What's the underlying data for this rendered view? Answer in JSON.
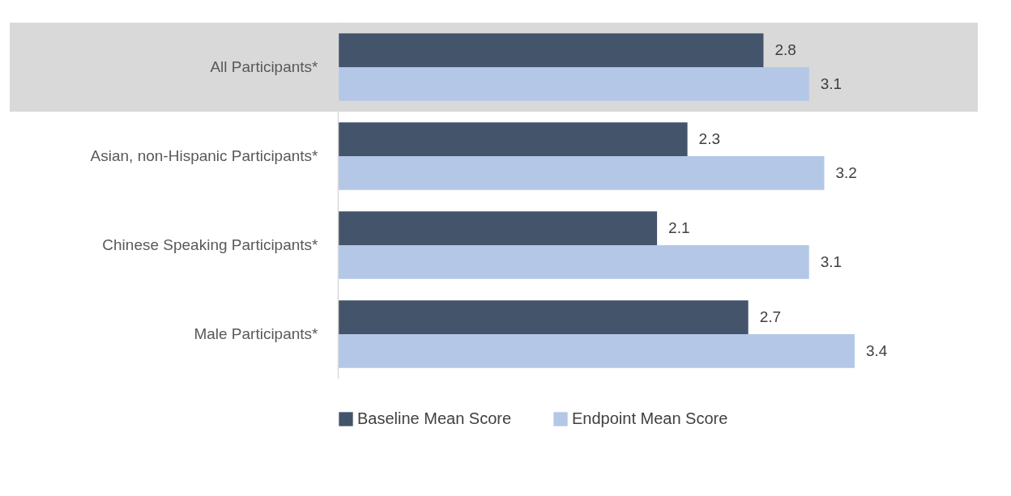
{
  "chart_data": {
    "type": "bar",
    "orientation": "horizontal",
    "categories": [
      "All Participants*",
      "Asian, non-Hispanic Participants*",
      "Chinese Speaking Participants*",
      "Male Participants*"
    ],
    "series": [
      {
        "name": "Baseline Mean Score",
        "color": "#44546a",
        "values": [
          2.8,
          2.3,
          2.1,
          2.7
        ]
      },
      {
        "name": "Endpoint Mean Score",
        "color": "#b4c7e7",
        "values": [
          3.1,
          3.2,
          3.1,
          3.4
        ]
      }
    ],
    "data_labels": true,
    "legend": "bottom",
    "bands": [
      {
        "axis": "y",
        "from": "All Participants*",
        "to": "All Participants*",
        "color": "#d9d9d9"
      }
    ]
  }
}
